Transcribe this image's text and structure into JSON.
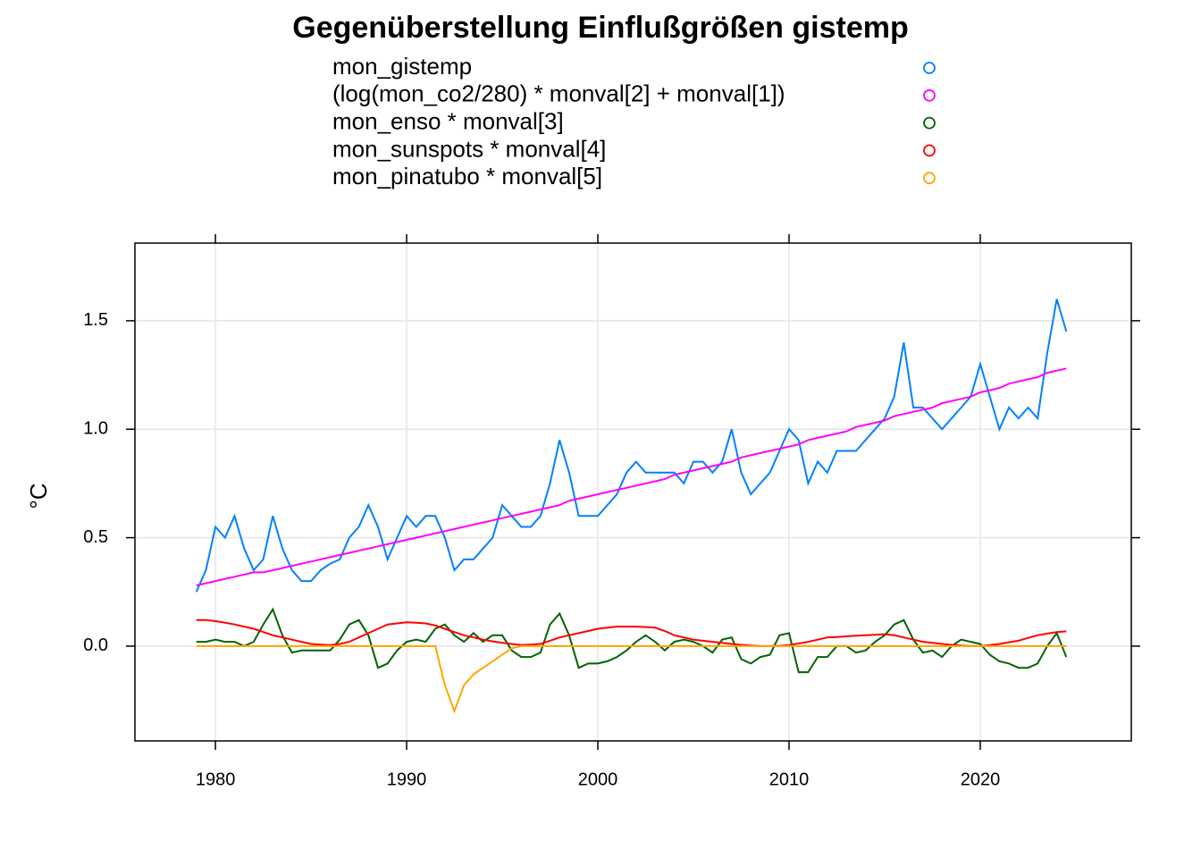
{
  "chart_data": {
    "type": "line",
    "title": "Gegenüberstellung Einflußgrößen gistemp",
    "ylabel": "°C",
    "xlim": [
      1975.79,
      2027.9
    ],
    "ylim": [
      -0.437,
      1.858
    ],
    "xticks": [
      1980,
      1990,
      2000,
      2010,
      2020
    ],
    "yticks": [
      {
        "value": 0,
        "label": "0.0"
      },
      {
        "value": 0.5,
        "label": "0.5"
      },
      {
        "value": 1,
        "label": "1.0"
      },
      1.5
    ],
    "grid": true,
    "legend": "top",
    "x": [
      1979,
      1979.5,
      1980,
      1980.5,
      1981,
      1981.5,
      1982,
      1982.5,
      1983,
      1983.5,
      1984,
      1984.5,
      1985,
      1985.5,
      1986,
      1986.5,
      1987,
      1987.5,
      1988,
      1988.5,
      1989,
      1989.5,
      1990,
      1990.5,
      1991,
      1991.5,
      1992,
      1992.5,
      1993,
      1993.5,
      1994,
      1994.5,
      1995,
      1995.5,
      1996,
      1996.5,
      1997,
      1997.5,
      1998,
      1998.5,
      1999,
      1999.5,
      2000,
      2000.5,
      2001,
      2001.5,
      2002,
      2002.5,
      2003,
      2003.5,
      2004,
      2004.5,
      2005,
      2005.5,
      2006,
      2006.5,
      2007,
      2007.5,
      2008,
      2008.5,
      2009,
      2009.5,
      2010,
      2010.5,
      2011,
      2011.5,
      2012,
      2012.5,
      2013,
      2013.5,
      2014,
      2014.5,
      2015,
      2015.5,
      2016,
      2016.5,
      2017,
      2017.5,
      2018,
      2018.5,
      2019,
      2019.5,
      2020,
      2020.5,
      2021,
      2021.5,
      2022,
      2022.5,
      2023,
      2023.5,
      2024,
      2024.5
    ],
    "series": [
      {
        "name": "mon_gistemp",
        "color": "#0080ff",
        "values": [
          0.25,
          0.35,
          0.55,
          0.5,
          0.6,
          0.45,
          0.35,
          0.4,
          0.6,
          0.45,
          0.35,
          0.3,
          0.3,
          0.35,
          0.38,
          0.4,
          0.5,
          0.55,
          0.65,
          0.55,
          0.4,
          0.5,
          0.6,
          0.55,
          0.6,
          0.6,
          0.5,
          0.35,
          0.4,
          0.4,
          0.45,
          0.5,
          0.65,
          0.6,
          0.55,
          0.55,
          0.6,
          0.75,
          0.95,
          0.8,
          0.6,
          0.6,
          0.6,
          0.65,
          0.7,
          0.8,
          0.85,
          0.8,
          0.8,
          0.8,
          0.8,
          0.75,
          0.85,
          0.85,
          0.8,
          0.85,
          1.0,
          0.8,
          0.7,
          0.75,
          0.8,
          0.9,
          1.0,
          0.95,
          0.75,
          0.85,
          0.8,
          0.9,
          0.9,
          0.9,
          0.95,
          1.0,
          1.05,
          1.15,
          1.4,
          1.1,
          1.1,
          1.05,
          1.0,
          1.05,
          1.1,
          1.15,
          1.3,
          1.15,
          1.0,
          1.1,
          1.05,
          1.1,
          1.05,
          1.35,
          1.6,
          1.45
        ]
      },
      {
        "name": "(log(mon_co2/280) * monval[2] + monval[1])",
        "color": "#ff00ff",
        "values": [
          0.28,
          0.29,
          0.3,
          0.31,
          0.32,
          0.33,
          0.34,
          0.34,
          0.35,
          0.36,
          0.37,
          0.38,
          0.39,
          0.4,
          0.41,
          0.42,
          0.43,
          0.44,
          0.45,
          0.46,
          0.47,
          0.48,
          0.49,
          0.5,
          0.51,
          0.52,
          0.53,
          0.54,
          0.55,
          0.56,
          0.57,
          0.58,
          0.59,
          0.6,
          0.61,
          0.62,
          0.63,
          0.64,
          0.65,
          0.67,
          0.68,
          0.69,
          0.7,
          0.71,
          0.72,
          0.73,
          0.74,
          0.75,
          0.76,
          0.77,
          0.79,
          0.8,
          0.81,
          0.82,
          0.83,
          0.84,
          0.85,
          0.87,
          0.88,
          0.89,
          0.9,
          0.91,
          0.92,
          0.93,
          0.95,
          0.96,
          0.97,
          0.98,
          0.99,
          1.01,
          1.02,
          1.03,
          1.04,
          1.06,
          1.07,
          1.08,
          1.09,
          1.1,
          1.12,
          1.13,
          1.14,
          1.15,
          1.17,
          1.18,
          1.19,
          1.21,
          1.22,
          1.23,
          1.24,
          1.26,
          1.27,
          1.28
        ]
      },
      {
        "name": "mon_enso * monval[3]",
        "color": "#006400",
        "values": [
          0.02,
          0.02,
          0.03,
          0.02,
          0.02,
          0,
          0.02,
          0.1,
          0.17,
          0.05,
          -0.03,
          -0.02,
          -0.02,
          -0.02,
          -0.02,
          0.03,
          0.1,
          0.12,
          0.05,
          -0.1,
          -0.08,
          -0.02,
          0.02,
          0.03,
          0.02,
          0.08,
          0.1,
          0.05,
          0.02,
          0.06,
          0.02,
          0.05,
          0.05,
          -0.02,
          -0.05,
          -0.05,
          -0.03,
          0.1,
          0.15,
          0.05,
          -0.1,
          -0.08,
          -0.08,
          -0.07,
          -0.05,
          -0.02,
          0.02,
          0.05,
          0.02,
          -0.02,
          0.02,
          0.03,
          0.02,
          0,
          -0.03,
          0.03,
          0.04,
          -0.06,
          -0.08,
          -0.05,
          -0.04,
          0.05,
          0.06,
          -0.12,
          -0.12,
          -0.05,
          -0.05,
          0,
          0,
          -0.03,
          -0.02,
          0.02,
          0.05,
          0.1,
          0.12,
          0.03,
          -0.03,
          -0.02,
          -0.05,
          0,
          0.03,
          0.02,
          0.01,
          -0.04,
          -0.07,
          -0.08,
          -0.1,
          -0.1,
          -0.08,
          0,
          0.06,
          -0.05
        ]
      },
      {
        "name": "mon_sunspots * monval[4]",
        "color": "#ff0000",
        "values": [
          0.12,
          0.12,
          0.115,
          0.108,
          0.1,
          0.09,
          0.08,
          0.065,
          0.05,
          0.04,
          0.03,
          0.02,
          0.01,
          0.007,
          0.005,
          0.01,
          0.02,
          0.04,
          0.06,
          0.08,
          0.1,
          0.105,
          0.11,
          0.108,
          0.105,
          0.095,
          0.08,
          0.065,
          0.05,
          0.04,
          0.03,
          0.022,
          0.015,
          0.01,
          0.005,
          0.007,
          0.01,
          0.025,
          0.04,
          0.05,
          0.06,
          0.07,
          0.08,
          0.085,
          0.09,
          0.09,
          0.09,
          0.088,
          0.085,
          0.07,
          0.05,
          0.04,
          0.03,
          0.025,
          0.02,
          0.015,
          0.01,
          0.006,
          0.003,
          0.001,
          0,
          0.002,
          0.005,
          0.012,
          0.02,
          0.03,
          0.04,
          0.042,
          0.045,
          0.048,
          0.05,
          0.052,
          0.055,
          0.05,
          0.04,
          0.03,
          0.02,
          0.015,
          0.01,
          0.006,
          0.003,
          0.001,
          0,
          0.005,
          0.01,
          0.018,
          0.025,
          0.038,
          0.05,
          0.058,
          0.065,
          0.068
        ]
      },
      {
        "name": "mon_pinatubo * monval[5]",
        "color": "#ffa500",
        "values": [
          0,
          0,
          0,
          0,
          0,
          0,
          0,
          0,
          0,
          0,
          0,
          0,
          0,
          0,
          0,
          0,
          0,
          0,
          0,
          0,
          0,
          0,
          0,
          0,
          0,
          0,
          -0.18,
          -0.3,
          -0.18,
          -0.13,
          -0.1,
          -0.07,
          -0.04,
          -0.01,
          0,
          0,
          0,
          0,
          0,
          0,
          0,
          0,
          0,
          0,
          0,
          0,
          0,
          0,
          0,
          0,
          0,
          0,
          0,
          0,
          0,
          0,
          0,
          0,
          0,
          0,
          0,
          0,
          0,
          0,
          0,
          0,
          0,
          0,
          0,
          0,
          0,
          0,
          0,
          0,
          0,
          0,
          0,
          0,
          0,
          0,
          0,
          0,
          0,
          0,
          0,
          0,
          0,
          0,
          0,
          0,
          0,
          0
        ]
      }
    ]
  }
}
